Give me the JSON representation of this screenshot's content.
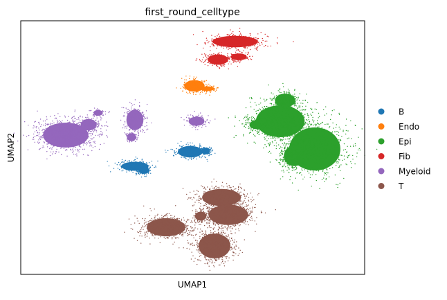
{
  "chart_data": {
    "type": "scatter",
    "title": "first_round_celltype",
    "xlabel": "UMAP1",
    "ylabel": "UMAP2",
    "grid": false,
    "ticks": false,
    "legend_position": "right",
    "legend": [
      {
        "name": "B",
        "color": "#1f77b4"
      },
      {
        "name": "Endo",
        "color": "#ff7f0e"
      },
      {
        "name": "Epi",
        "color": "#2ca02c"
      },
      {
        "name": "Fib",
        "color": "#d62728"
      },
      {
        "name": "Myeloid",
        "color": "#9467bd"
      },
      {
        "name": "T",
        "color": "#8c564b"
      }
    ]
  }
}
